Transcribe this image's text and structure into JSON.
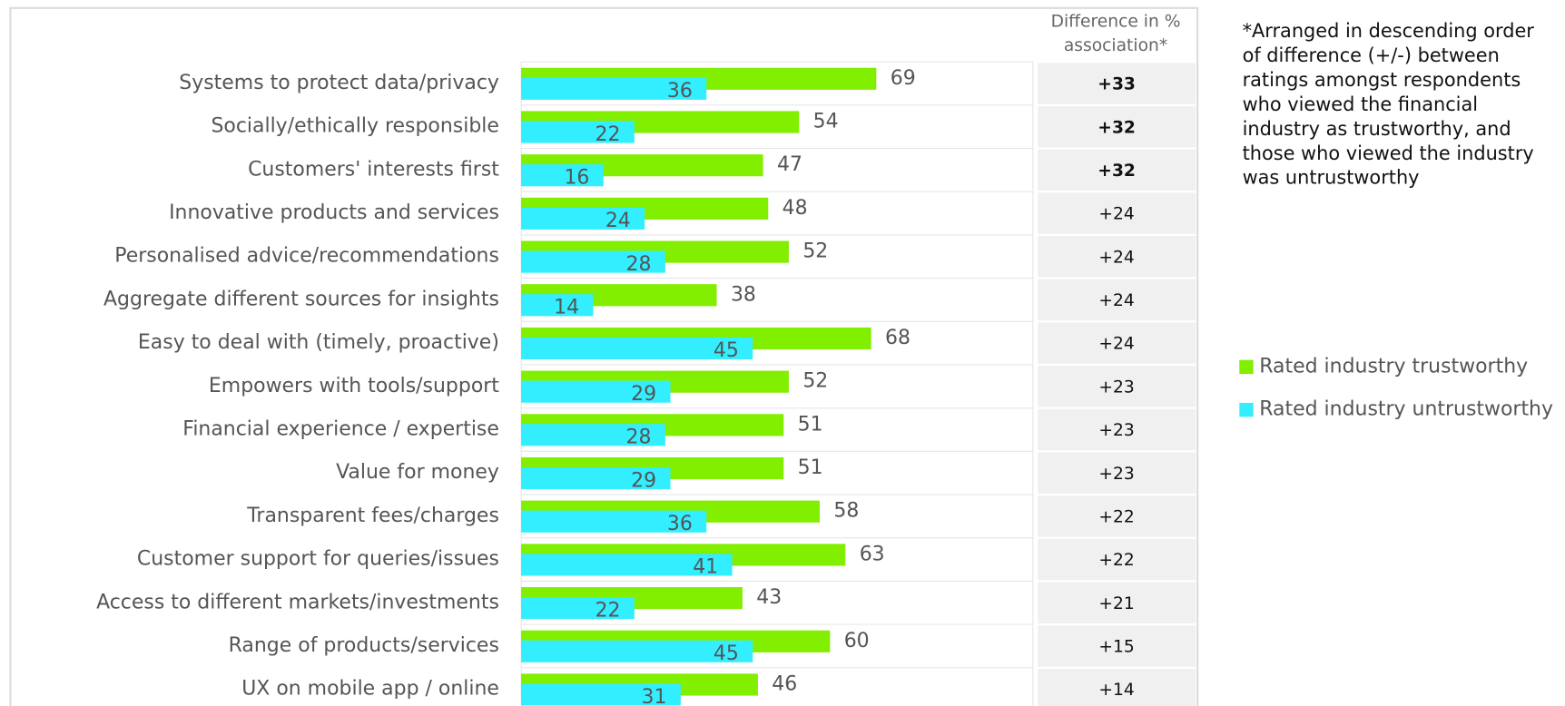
{
  "chart_data": {
    "type": "grouped-hbar",
    "categories": [
      "Systems to protect data/privacy",
      "Socially/ethically responsible",
      "Customers' interests first",
      "Innovative products and services",
      "Personalised advice/recommendations",
      "Aggregate different sources for insights",
      "Easy to deal with (timely, proactive)",
      "Empowers with tools/support",
      "Financial experience / expertise",
      "Value for money",
      "Transparent fees/charges",
      "Customer support for queries/issues",
      "Access to different markets/investments",
      "Range of products/services",
      "UX on mobile app / online"
    ],
    "series": [
      {
        "name": "Rated industry trustworthy",
        "color": "#82ee00",
        "values": [
          69,
          54,
          47,
          48,
          52,
          38,
          68,
          52,
          51,
          51,
          58,
          63,
          43,
          60,
          46
        ]
      },
      {
        "name": "Rated industry untrustworthy",
        "color": "#33eeff",
        "values": [
          36,
          22,
          16,
          24,
          28,
          14,
          45,
          29,
          28,
          29,
          36,
          41,
          22,
          45,
          31
        ]
      }
    ],
    "difference": {
      "title": [
        "Difference in %",
        "association*"
      ],
      "values": [
        33,
        32,
        32,
        24,
        24,
        24,
        24,
        23,
        23,
        23,
        22,
        22,
        21,
        15,
        14
      ],
      "value_labels": [
        "+33",
        "+32",
        "+32",
        "+24",
        "+24",
        "+24",
        "+24",
        "+23",
        "+23",
        "+23",
        "+22",
        "+22",
        "+21",
        "+15",
        "+14"
      ],
      "bold": [
        true,
        true,
        true,
        false,
        false,
        false,
        false,
        false,
        false,
        false,
        false,
        false,
        false,
        false,
        false
      ]
    },
    "note": [
      "*Arranged in descending order",
      "of difference (+/-) between",
      "ratings amongst respondents",
      "who viewed the financial",
      "industry as trustworthy, and",
      "those who viewed the industry",
      "was untrustworthy"
    ]
  }
}
